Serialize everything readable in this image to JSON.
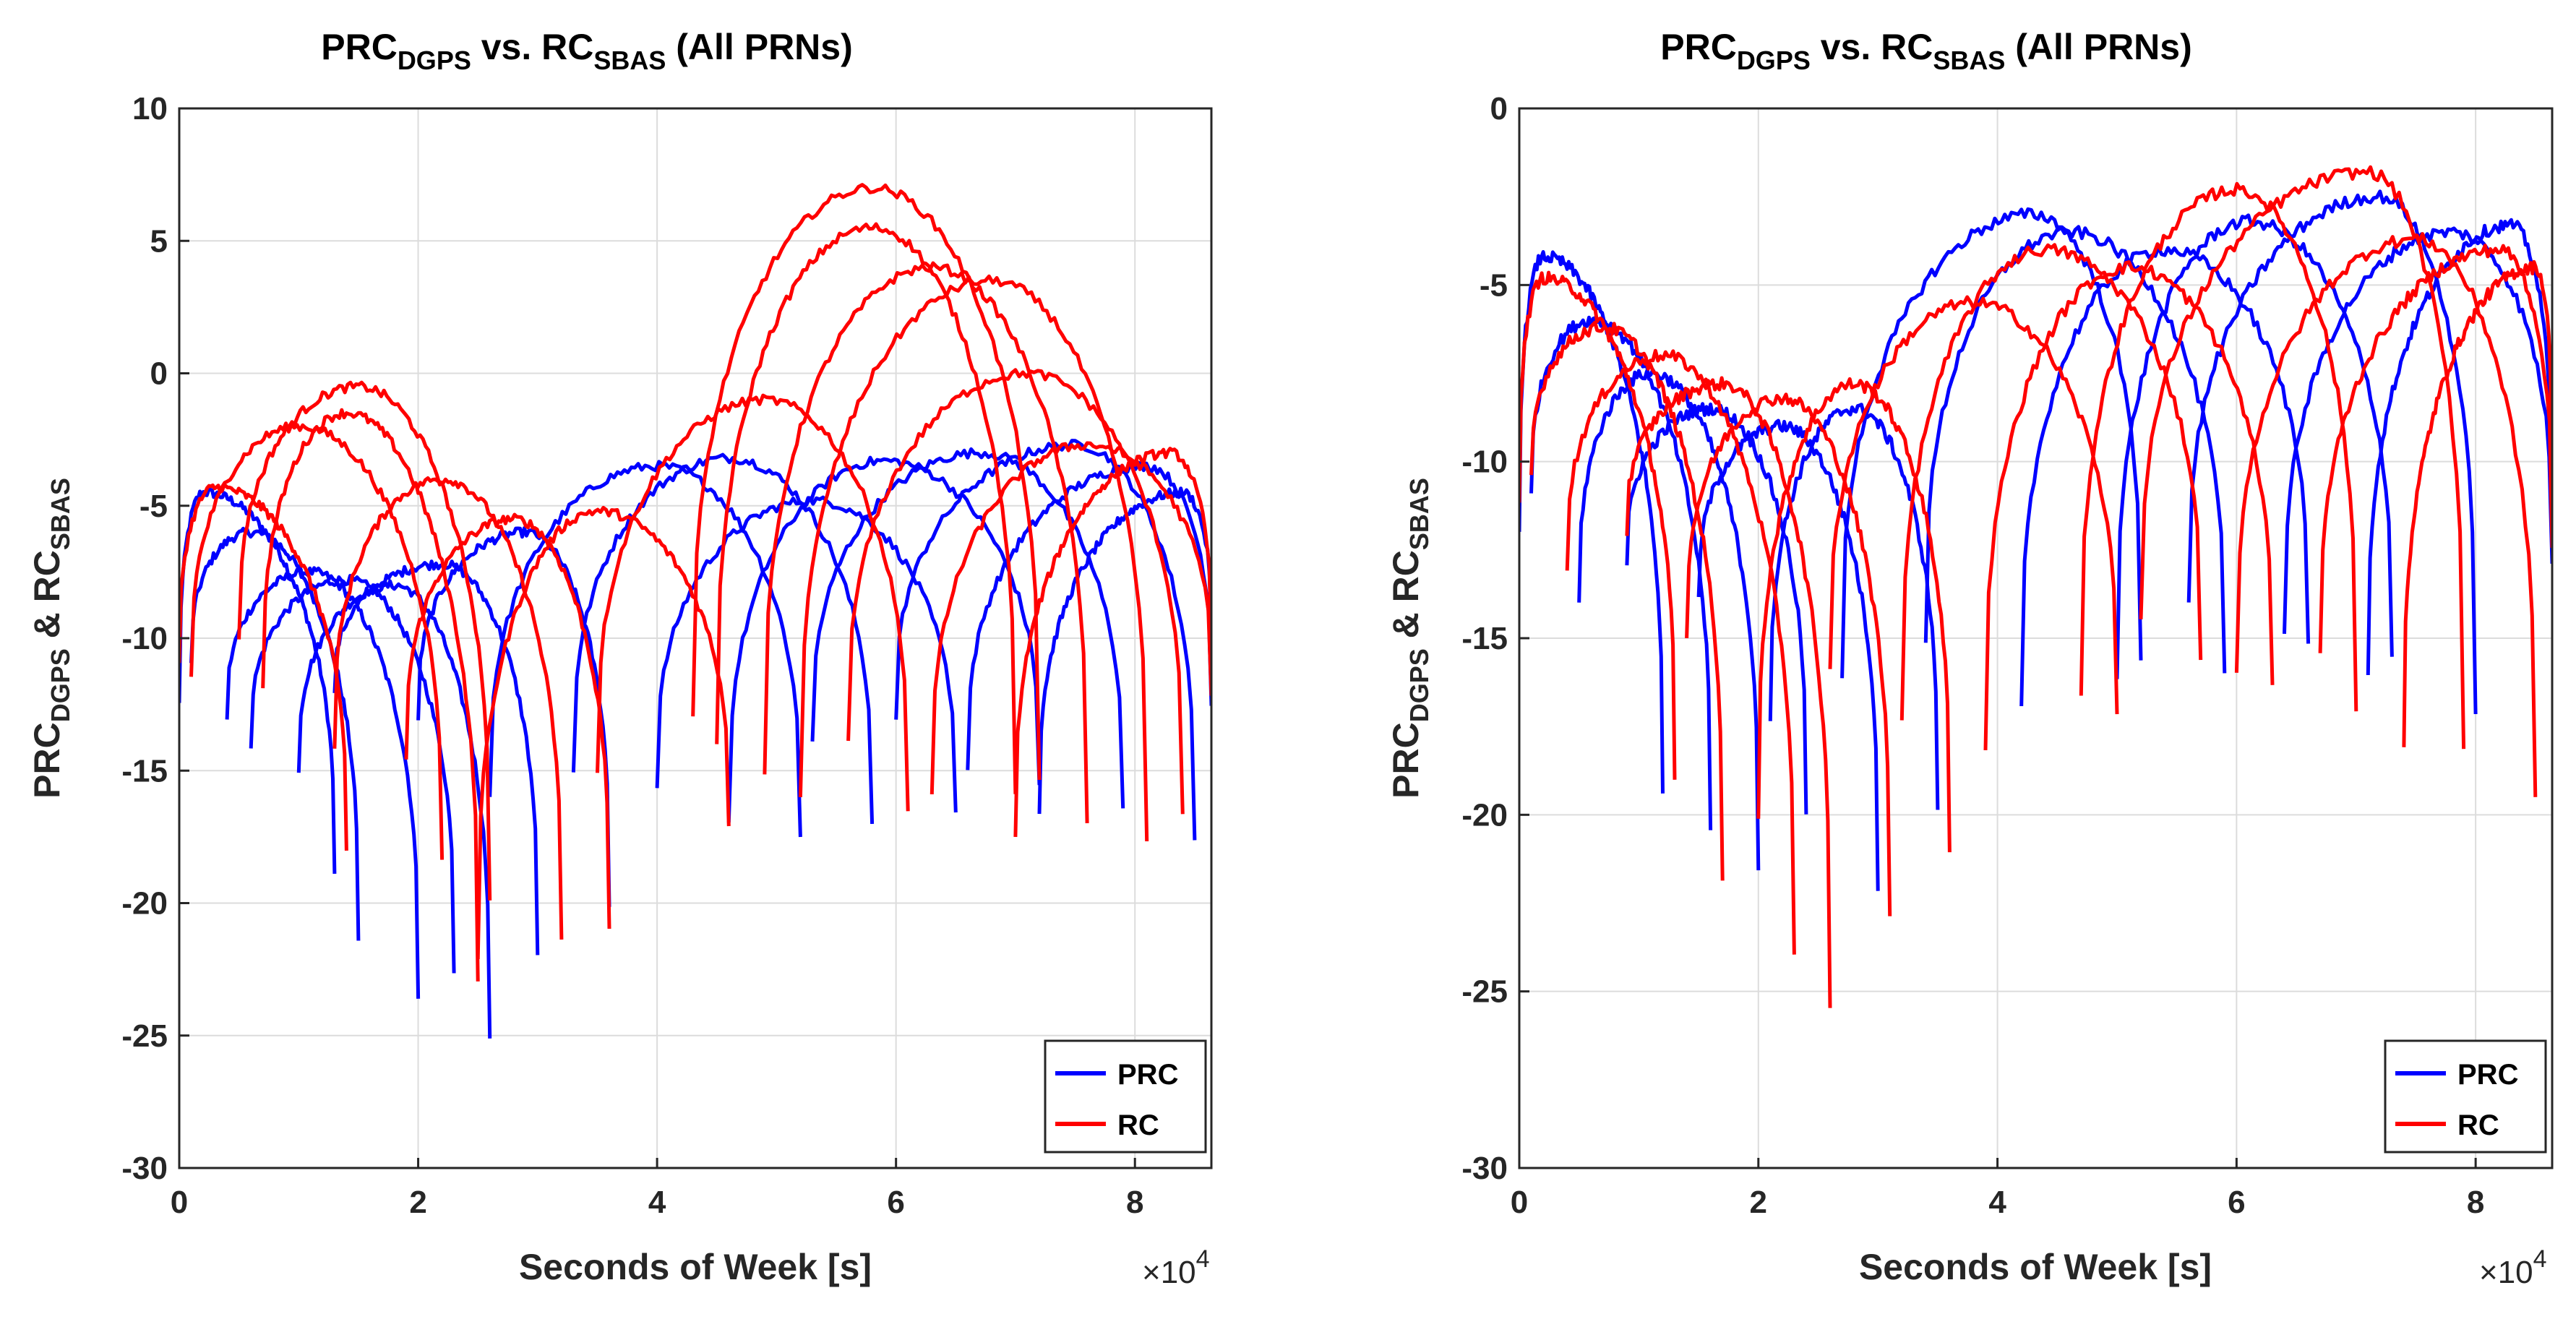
{
  "colors": {
    "prc": "#0000ff",
    "rc": "#ff0000",
    "grid": "#dcdcdc",
    "axis": "#262626"
  },
  "chart_data": [
    {
      "type": "line",
      "title": {
        "main1": "PRC",
        "sub1": "DGPS",
        "main2": " vs. RC",
        "sub2": "SBAS",
        "main3": " (All PRNs)"
      },
      "ylabel": {
        "main1": "PRC",
        "sub1": "DGPS",
        "main2": " & RC",
        "sub2": "SBAS"
      },
      "xlabel": "Seconds of Week [s]",
      "x_multiplier": {
        "base": "×10",
        "exp": "4"
      },
      "xlim": [
        0,
        8.64
      ],
      "ylim": [
        -30,
        10
      ],
      "xticks": [
        0,
        2,
        4,
        6,
        8
      ],
      "xtick_labels": [
        "0",
        "2",
        "4",
        "6",
        "8"
      ],
      "yticks": [
        -30,
        -25,
        -20,
        -15,
        -10,
        -5,
        0,
        5,
        10
      ],
      "ytick_labels": [
        "-30",
        "-25",
        "-20",
        "-15",
        "-10",
        "-5",
        "0",
        "5",
        "10"
      ],
      "grid": true,
      "legend": {
        "position": "bottom-right",
        "entries": [
          "PRC",
          "RC"
        ]
      },
      "series": [
        {
          "name": "PRC",
          "color": "#0000ff",
          "passes": [
            {
              "start": 0.0,
              "end": 1.3,
              "peak_x": 0.2,
              "peak_y": -4.5,
              "min_left": -12.5,
              "min_right": -19
            },
            {
              "start": 0.1,
              "end": 1.5,
              "peak_x": 0.6,
              "peak_y": -6,
              "min_left": -11,
              "min_right": -21.5
            },
            {
              "start": 0.4,
              "end": 2.0,
              "peak_x": 1.1,
              "peak_y": -7.5,
              "min_left": -13,
              "min_right": -23.5
            },
            {
              "start": 0.6,
              "end": 2.3,
              "peak_x": 1.4,
              "peak_y": -7.8,
              "min_left": -14,
              "min_right": -22.5
            },
            {
              "start": 1.0,
              "end": 2.6,
              "peak_x": 1.8,
              "peak_y": -8,
              "min_left": -15,
              "min_right": -25.2
            },
            {
              "start": 1.3,
              "end": 3.0,
              "peak_x": 2.2,
              "peak_y": -7.2,
              "min_left": -12,
              "min_right": -22
            },
            {
              "start": 2.0,
              "end": 3.6,
              "peak_x": 2.9,
              "peak_y": -6,
              "min_left": -13,
              "min_right": -20
            },
            {
              "start": 2.6,
              "end": 5.2,
              "peak_x": 4.0,
              "peak_y": -3.5,
              "min_left": -16,
              "min_right": -17.5
            },
            {
              "start": 3.3,
              "end": 5.8,
              "peak_x": 4.6,
              "peak_y": -3.2,
              "min_left": -15,
              "min_right": -17
            },
            {
              "start": 4.0,
              "end": 6.5,
              "peak_x": 5.3,
              "peak_y": -4.8,
              "min_left": -15.5,
              "min_right": -16.5
            },
            {
              "start": 4.6,
              "end": 7.2,
              "peak_x": 5.9,
              "peak_y": -3.3,
              "min_left": -17,
              "min_right": -15.5
            },
            {
              "start": 5.3,
              "end": 7.9,
              "peak_x": 6.7,
              "peak_y": -3,
              "min_left": -14,
              "min_right": -16.5
            },
            {
              "start": 6.0,
              "end": 8.5,
              "peak_x": 7.5,
              "peak_y": -2.7,
              "min_left": -13,
              "min_right": -17.5
            },
            {
              "start": 6.6,
              "end": 8.64,
              "peak_x": 8.1,
              "peak_y": -3.5,
              "min_left": -15,
              "min_right": -12.5
            },
            {
              "start": 7.2,
              "end": 8.64,
              "peak_x": 8.4,
              "peak_y": -4.5,
              "min_left": -16.5,
              "min_right": -10
            }
          ]
        },
        {
          "name": "RC",
          "color": "#ff0000",
          "passes": [
            {
              "start": 0.0,
              "end": 1.4,
              "peak_x": 0.3,
              "peak_y": -4.3,
              "min_left": -11,
              "min_right": -18
            },
            {
              "start": 0.1,
              "end": 2.2,
              "peak_x": 1.0,
              "peak_y": -2,
              "min_left": -11.5,
              "min_right": -18.5
            },
            {
              "start": 0.5,
              "end": 2.6,
              "peak_x": 1.5,
              "peak_y": -0.5,
              "min_left": -10,
              "min_right": -20
            },
            {
              "start": 0.7,
              "end": 2.5,
              "peak_x": 1.4,
              "peak_y": -1.5,
              "min_left": -12,
              "min_right": -23
            },
            {
              "start": 1.3,
              "end": 3.2,
              "peak_x": 2.2,
              "peak_y": -4,
              "min_left": -14,
              "min_right": -21.5
            },
            {
              "start": 1.9,
              "end": 3.6,
              "peak_x": 2.8,
              "peak_y": -5.5,
              "min_left": -14.5,
              "min_right": -21
            },
            {
              "start": 2.5,
              "end": 4.6,
              "peak_x": 3.5,
              "peak_y": -5.2,
              "min_left": -22,
              "min_right": -17
            },
            {
              "start": 3.5,
              "end": 6.1,
              "peak_x": 4.9,
              "peak_y": -1,
              "min_left": -15,
              "min_right": -16.5
            },
            {
              "start": 4.3,
              "end": 7.2,
              "peak_x": 5.8,
              "peak_y": 7,
              "min_left": -13,
              "min_right": -15.5
            },
            {
              "start": 4.5,
              "end": 7.0,
              "peak_x": 5.8,
              "peak_y": 5.5,
              "min_left": -14,
              "min_right": -16
            },
            {
              "start": 4.9,
              "end": 7.6,
              "peak_x": 6.3,
              "peak_y": 4,
              "min_left": -15,
              "min_right": -17
            },
            {
              "start": 5.2,
              "end": 8.1,
              "peak_x": 6.8,
              "peak_y": 3.5,
              "min_left": -16,
              "min_right": -17.5
            },
            {
              "start": 5.6,
              "end": 8.4,
              "peak_x": 7.1,
              "peak_y": 0,
              "min_left": -14,
              "min_right": -16.5
            },
            {
              "start": 6.3,
              "end": 8.64,
              "peak_x": 7.6,
              "peak_y": -2.7,
              "min_left": -16,
              "min_right": -12
            },
            {
              "start": 7.0,
              "end": 8.64,
              "peak_x": 8.3,
              "peak_y": -3,
              "min_left": -17.5,
              "min_right": -10.5
            }
          ]
        }
      ]
    },
    {
      "type": "line",
      "title": {
        "main1": "PRC",
        "sub1": "DGPS",
        "main2": " vs. RC",
        "sub2": "SBAS",
        "main3": " (All PRNs)"
      },
      "ylabel": {
        "main1": "PRC",
        "sub1": "DGPS",
        "main2": " & RC",
        "sub2": "SBAS"
      },
      "xlabel": "Seconds of Week [s]",
      "x_multiplier": {
        "base": "×10",
        "exp": "4"
      },
      "xlim": [
        0,
        8.64
      ],
      "ylim": [
        -30,
        0
      ],
      "xticks": [
        0,
        2,
        4,
        6,
        8
      ],
      "xtick_labels": [
        "0",
        "2",
        "4",
        "6",
        "8"
      ],
      "yticks": [
        -30,
        -25,
        -20,
        -15,
        -10,
        -5,
        0
      ],
      "ytick_labels": [
        "-30",
        "-25",
        "-20",
        "-15",
        "-10",
        "-5",
        "0"
      ],
      "grid": true,
      "legend": {
        "position": "bottom-right",
        "entries": [
          "PRC",
          "RC"
        ]
      },
      "series": [
        {
          "name": "PRC",
          "color": "#0000ff",
          "passes": [
            {
              "start": 0.0,
              "end": 1.2,
              "peak_x": 0.2,
              "peak_y": -4.2,
              "min_left": -12,
              "min_right": -19.5
            },
            {
              "start": 0.1,
              "end": 1.6,
              "peak_x": 0.6,
              "peak_y": -6,
              "min_left": -11,
              "min_right": -20.5
            },
            {
              "start": 0.5,
              "end": 2.0,
              "peak_x": 1.1,
              "peak_y": -7.5,
              "min_left": -14,
              "min_right": -21.5
            },
            {
              "start": 0.9,
              "end": 2.4,
              "peak_x": 1.6,
              "peak_y": -8.5,
              "min_left": -13,
              "min_right": -20
            },
            {
              "start": 1.5,
              "end": 3.0,
              "peak_x": 2.2,
              "peak_y": -9,
              "min_left": -14,
              "min_right": -22
            },
            {
              "start": 2.1,
              "end": 3.5,
              "peak_x": 2.8,
              "peak_y": -8.5,
              "min_left": -17.5,
              "min_right": -20
            },
            {
              "start": 2.7,
              "end": 5.2,
              "peak_x": 4.3,
              "peak_y": -3,
              "min_left": -16,
              "min_right": -15.5
            },
            {
              "start": 3.4,
              "end": 5.9,
              "peak_x": 4.6,
              "peak_y": -3.5,
              "min_left": -15,
              "min_right": -16
            },
            {
              "start": 4.2,
              "end": 6.6,
              "peak_x": 5.4,
              "peak_y": -4,
              "min_left": -17,
              "min_right": -15
            },
            {
              "start": 5.0,
              "end": 7.3,
              "peak_x": 6.1,
              "peak_y": -3.2,
              "min_left": -16,
              "min_right": -15.5
            },
            {
              "start": 5.6,
              "end": 8.0,
              "peak_x": 7.2,
              "peak_y": -2.5,
              "min_left": -14,
              "min_right": -17
            },
            {
              "start": 6.4,
              "end": 8.64,
              "peak_x": 7.8,
              "peak_y": -3.5,
              "min_left": -15,
              "min_right": -13
            },
            {
              "start": 7.1,
              "end": 8.64,
              "peak_x": 8.3,
              "peak_y": -3.3,
              "min_left": -16,
              "min_right": -12
            }
          ]
        },
        {
          "name": "RC",
          "color": "#ff0000",
          "passes": [
            {
              "start": 0.0,
              "end": 1.3,
              "peak_x": 0.2,
              "peak_y": -4.8,
              "min_left": -11,
              "min_right": -19
            },
            {
              "start": 0.1,
              "end": 1.7,
              "peak_x": 0.7,
              "peak_y": -6.2,
              "min_left": -10.5,
              "min_right": -22
            },
            {
              "start": 0.4,
              "end": 2.3,
              "peak_x": 1.2,
              "peak_y": -7,
              "min_left": -13,
              "min_right": -24
            },
            {
              "start": 0.9,
              "end": 2.6,
              "peak_x": 1.7,
              "peak_y": -7.8,
              "min_left": -12,
              "min_right": -25.3
            },
            {
              "start": 1.4,
              "end": 3.1,
              "peak_x": 2.2,
              "peak_y": -8.2,
              "min_left": -15,
              "min_right": -23
            },
            {
              "start": 2.0,
              "end": 3.6,
              "peak_x": 2.8,
              "peak_y": -7.8,
              "min_left": -20,
              "min_right": -21
            },
            {
              "start": 2.6,
              "end": 5.0,
              "peak_x": 3.8,
              "peak_y": -5.5,
              "min_left": -16,
              "min_right": -17
            },
            {
              "start": 3.2,
              "end": 5.7,
              "peak_x": 4.4,
              "peak_y": -4,
              "min_left": -17.5,
              "min_right": -15.5
            },
            {
              "start": 3.9,
              "end": 6.3,
              "peak_x": 5.1,
              "peak_y": -4.5,
              "min_left": -18,
              "min_right": -16.5
            },
            {
              "start": 4.7,
              "end": 7.0,
              "peak_x": 6.0,
              "peak_y": -2.3,
              "min_left": -16.5,
              "min_right": -17
            },
            {
              "start": 5.2,
              "end": 7.9,
              "peak_x": 7.1,
              "peak_y": -1.8,
              "min_left": -14.5,
              "min_right": -18
            },
            {
              "start": 6.0,
              "end": 8.5,
              "peak_x": 7.5,
              "peak_y": -3.7,
              "min_left": -16,
              "min_right": -19.5
            },
            {
              "start": 6.7,
              "end": 8.64,
              "peak_x": 8.2,
              "peak_y": -4,
              "min_left": -15.5,
              "min_right": -12.5
            },
            {
              "start": 7.4,
              "end": 8.64,
              "peak_x": 8.5,
              "peak_y": -4.5,
              "min_left": -18,
              "min_right": -10.5
            }
          ]
        }
      ]
    }
  ]
}
